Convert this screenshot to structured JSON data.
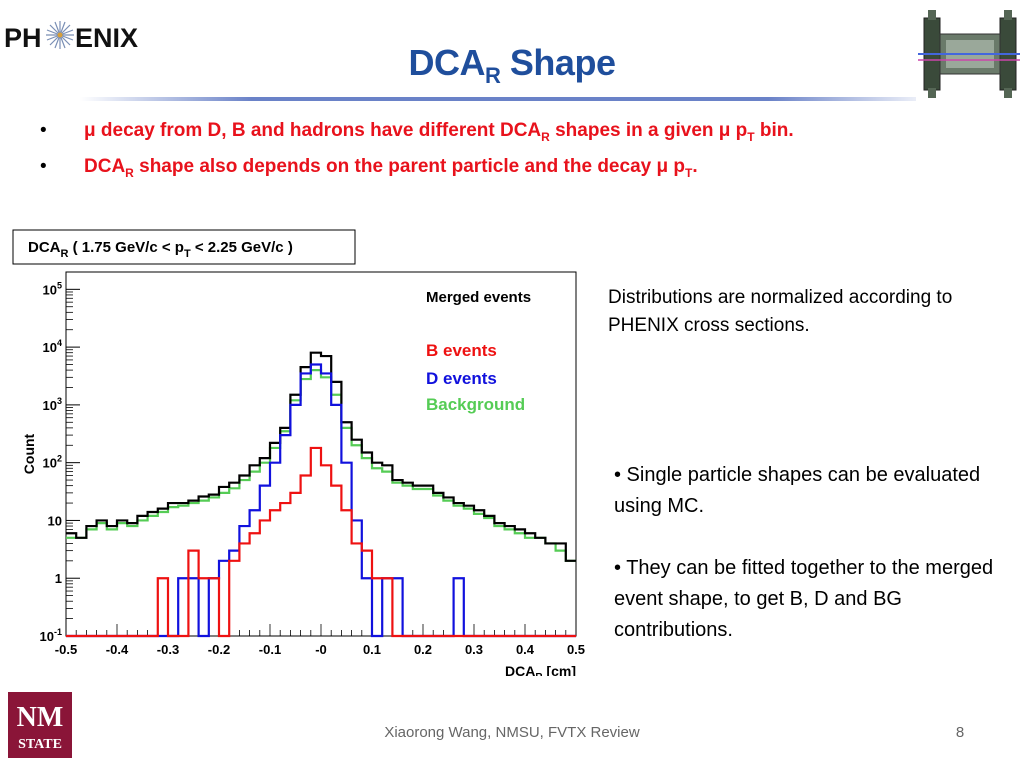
{
  "header": {
    "logo_text_left": "PH",
    "logo_text_right": "ENIX",
    "title_main": "DCA",
    "title_sub": "R",
    "title_rest": " Shape"
  },
  "bullets": [
    {
      "t1": "μ decay from D, B and hadrons have different DCA",
      "s1": "R",
      "t2": " shapes in a given μ p",
      "s2": "T",
      "t3": " bin."
    },
    {
      "t1": "DCA",
      "s1": "R",
      "t2": " shape also depends on the parent particle and the decay μ p",
      "s2": "T",
      "t3": "."
    }
  ],
  "notes": {
    "normalization": "Distributions are normalized according to PHENIX cross sections.",
    "point1": "• Single particle shapes can be evaluated using MC.",
    "point2": "• They can be fitted together to the merged event shape, to get B, D and BG contributions."
  },
  "footer": {
    "text": "Xiaorong Wang, NMSU, FVTX Review",
    "page": "8",
    "nmsu_top": "NM",
    "nmsu_bottom": "STATE"
  },
  "colors": {
    "title": "#1f4e9c",
    "bullet": "#e8121c",
    "merged": "#000000",
    "b_events": "#ee1111",
    "d_events": "#1111dd",
    "background": "#55cc55",
    "nmsu": "#8a1538"
  },
  "chart_data": {
    "type": "line",
    "step": true,
    "title": "DCA_R ( 1.75 GeV/c < p_T < 2.25 GeV/c )",
    "xlabel": "DCA_R [cm]",
    "ylabel": "Count",
    "log_y": true,
    "xlim": [
      -0.5,
      0.5
    ],
    "ylim": [
      0.1,
      200000
    ],
    "xticks": [
      "-0.5",
      "-0.4",
      "-0.3",
      "-0.2",
      "-0.1",
      "-0",
      "0.1",
      "0.2",
      "0.3",
      "0.4",
      "0.5"
    ],
    "yticks": [
      "10-1",
      "1",
      "10",
      "102",
      "103",
      "104",
      "105"
    ],
    "legend": [
      "Merged events",
      "B events",
      "D events",
      "Background"
    ],
    "legend_position": "top-right",
    "series": [
      {
        "name": "Merged events",
        "x": [
          -0.5,
          -0.48,
          -0.46,
          -0.44,
          -0.42,
          -0.4,
          -0.38,
          -0.36,
          -0.34,
          -0.32,
          -0.3,
          -0.28,
          -0.26,
          -0.24,
          -0.22,
          -0.2,
          -0.18,
          -0.16,
          -0.14,
          -0.12,
          -0.1,
          -0.08,
          -0.06,
          -0.04,
          -0.02,
          0,
          0.02,
          0.04,
          0.06,
          0.08,
          0.1,
          0.12,
          0.14,
          0.16,
          0.18,
          0.2,
          0.22,
          0.24,
          0.26,
          0.28,
          0.3,
          0.32,
          0.34,
          0.36,
          0.38,
          0.4,
          0.42,
          0.44,
          0.46,
          0.48
        ],
        "y": [
          6,
          5,
          8,
          10,
          8,
          10,
          9,
          12,
          14,
          16,
          20,
          20,
          22,
          26,
          28,
          38,
          45,
          60,
          90,
          120,
          220,
          400,
          1500,
          4500,
          8000,
          7000,
          2500,
          500,
          250,
          150,
          100,
          90,
          50,
          45,
          40,
          40,
          30,
          25,
          20,
          18,
          15,
          12,
          9,
          8,
          7,
          6,
          5,
          4,
          4,
          2
        ]
      },
      {
        "name": "B events",
        "x": [
          -0.5,
          -0.48,
          -0.46,
          -0.44,
          -0.42,
          -0.4,
          -0.38,
          -0.36,
          -0.34,
          -0.32,
          -0.3,
          -0.28,
          -0.26,
          -0.24,
          -0.22,
          -0.2,
          -0.18,
          -0.16,
          -0.14,
          -0.12,
          -0.1,
          -0.08,
          -0.06,
          -0.04,
          -0.02,
          0,
          0.02,
          0.04,
          0.06,
          0.08,
          0.1,
          0.12,
          0.14,
          0.16,
          0.18,
          0.2,
          0.22,
          0.24,
          0.26,
          0.28,
          0.3,
          0.32,
          0.34,
          0.36,
          0.38,
          0.4,
          0.42,
          0.44,
          0.46,
          0.48
        ],
        "y": [
          0.1,
          0.1,
          0.1,
          0.1,
          0.1,
          0.1,
          0.1,
          0.1,
          0.1,
          1,
          0.1,
          0.1,
          3,
          1,
          1,
          0.1,
          2,
          4,
          6,
          10,
          15,
          20,
          30,
          60,
          180,
          90,
          40,
          15,
          4,
          3,
          1,
          1,
          0.1,
          0.1,
          0.1,
          0.1,
          0.1,
          0.1,
          0.1,
          0.1,
          0.1,
          0.1,
          0.1,
          0.1,
          0.1,
          0.1,
          0.1,
          0.1,
          0.1,
          0.1
        ]
      },
      {
        "name": "D events",
        "x": [
          -0.5,
          -0.48,
          -0.46,
          -0.44,
          -0.42,
          -0.4,
          -0.38,
          -0.36,
          -0.34,
          -0.32,
          -0.3,
          -0.28,
          -0.26,
          -0.24,
          -0.22,
          -0.2,
          -0.18,
          -0.16,
          -0.14,
          -0.12,
          -0.1,
          -0.08,
          -0.06,
          -0.04,
          -0.02,
          0,
          0.02,
          0.04,
          0.06,
          0.08,
          0.1,
          0.12,
          0.14,
          0.16,
          0.18,
          0.2,
          0.22,
          0.24,
          0.26,
          0.28,
          0.3,
          0.32,
          0.34,
          0.36,
          0.38,
          0.4,
          0.42,
          0.44,
          0.46,
          0.48
        ],
        "y": [
          0.1,
          0.1,
          0.1,
          0.1,
          0.1,
          0.1,
          0.1,
          0.1,
          0.1,
          0.1,
          0.1,
          1,
          1,
          0.1,
          1,
          2,
          3,
          8,
          15,
          40,
          100,
          300,
          1000,
          3500,
          5000,
          3500,
          1000,
          100,
          10,
          1,
          0.1,
          1,
          1,
          0.1,
          0.1,
          0.1,
          0.1,
          0.1,
          1,
          0.1,
          0.1,
          0.1,
          0.1,
          0.1,
          0.1,
          0.1,
          0.1,
          0.1,
          0.1,
          0.1
        ]
      },
      {
        "name": "Background",
        "x": [
          -0.5,
          -0.48,
          -0.46,
          -0.44,
          -0.42,
          -0.4,
          -0.38,
          -0.36,
          -0.34,
          -0.32,
          -0.3,
          -0.28,
          -0.26,
          -0.24,
          -0.22,
          -0.2,
          -0.18,
          -0.16,
          -0.14,
          -0.12,
          -0.1,
          -0.08,
          -0.06,
          -0.04,
          -0.02,
          0,
          0.02,
          0.04,
          0.06,
          0.08,
          0.1,
          0.12,
          0.14,
          0.16,
          0.18,
          0.2,
          0.22,
          0.24,
          0.26,
          0.28,
          0.3,
          0.32,
          0.34,
          0.36,
          0.38,
          0.4,
          0.42,
          0.44,
          0.46,
          0.48
        ],
        "y": [
          5,
          5,
          7,
          9,
          7,
          9,
          8,
          10,
          12,
          14,
          17,
          18,
          20,
          22,
          25,
          30,
          36,
          50,
          70,
          100,
          180,
          350,
          1200,
          2800,
          4000,
          3000,
          1500,
          400,
          200,
          120,
          80,
          70,
          45,
          40,
          35,
          35,
          27,
          22,
          18,
          16,
          13,
          11,
          8,
          7,
          6,
          5,
          5,
          4,
          3,
          2
        ]
      }
    ]
  }
}
